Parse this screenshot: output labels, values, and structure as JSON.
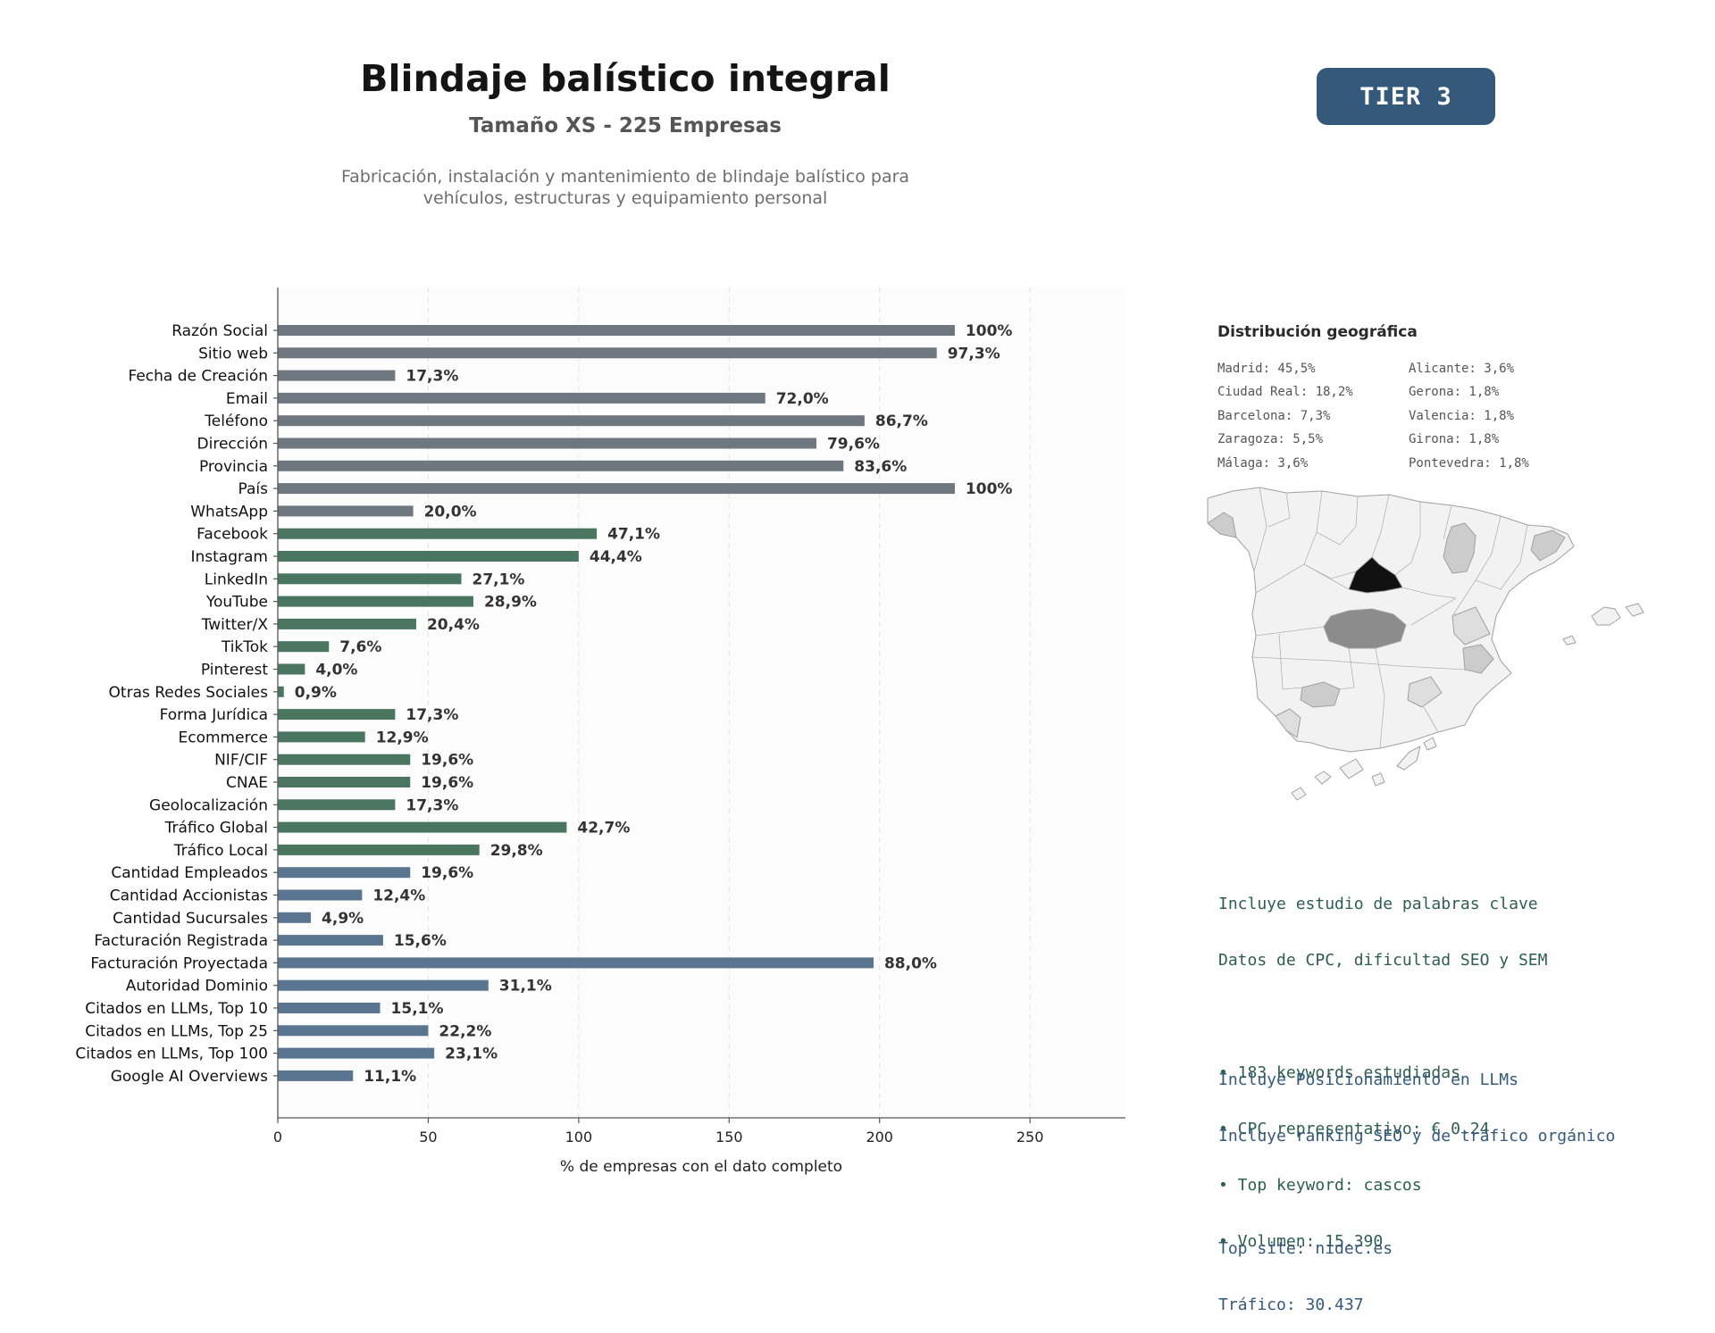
{
  "header": {
    "title": "Blindaje balístico integral",
    "subtitle": "Tamaño XS - 225 Empresas",
    "description_lines": [
      "Fabricación, instalación y mantenimiento de blindaje balístico para",
      "vehículos, estructuras y equipamiento personal"
    ],
    "tier_badge": "TIER 3",
    "tier_color": "#34597b"
  },
  "chart_data": {
    "type": "bar",
    "orientation": "horizontal",
    "xlabel": "% de empresas con el dato completo",
    "xlim": [
      0,
      282
    ],
    "x_ticks": [
      0,
      50,
      100,
      150,
      200,
      250
    ],
    "grid": "vertical dashed",
    "total_companies": 225,
    "group_colors": {
      "basic": "#6e7780",
      "digital": "#4a7561",
      "business": "#5a7590"
    },
    "bars": [
      {
        "category": "Razón Social",
        "count": 225,
        "label": "100%",
        "group": "basic"
      },
      {
        "category": "Sitio web",
        "count": 219,
        "label": "97,3%",
        "group": "basic"
      },
      {
        "category": "Fecha de Creación",
        "count": 39,
        "label": "17,3%",
        "group": "basic"
      },
      {
        "category": "Email",
        "count": 162,
        "label": "72,0%",
        "group": "basic"
      },
      {
        "category": "Teléfono",
        "count": 195,
        "label": "86,7%",
        "group": "basic"
      },
      {
        "category": "Dirección",
        "count": 179,
        "label": "79,6%",
        "group": "basic"
      },
      {
        "category": "Provincia",
        "count": 188,
        "label": "83,6%",
        "group": "basic"
      },
      {
        "category": "País",
        "count": 225,
        "label": "100%",
        "group": "basic"
      },
      {
        "category": "WhatsApp",
        "count": 45,
        "label": "20,0%",
        "group": "basic"
      },
      {
        "category": "Facebook",
        "count": 106,
        "label": "47,1%",
        "group": "digital"
      },
      {
        "category": "Instagram",
        "count": 100,
        "label": "44,4%",
        "group": "digital"
      },
      {
        "category": "LinkedIn",
        "count": 61,
        "label": "27,1%",
        "group": "digital"
      },
      {
        "category": "YouTube",
        "count": 65,
        "label": "28,9%",
        "group": "digital"
      },
      {
        "category": "Twitter/X",
        "count": 46,
        "label": "20,4%",
        "group": "digital"
      },
      {
        "category": "TikTok",
        "count": 17,
        "label": "7,6%",
        "group": "digital"
      },
      {
        "category": "Pinterest",
        "count": 9,
        "label": "4,0%",
        "group": "digital"
      },
      {
        "category": "Otras Redes Sociales",
        "count": 2,
        "label": "0,9%",
        "group": "digital"
      },
      {
        "category": "Forma Jurídica",
        "count": 39,
        "label": "17,3%",
        "group": "digital"
      },
      {
        "category": "Ecommerce",
        "count": 29,
        "label": "12,9%",
        "group": "digital"
      },
      {
        "category": "NIF/CIF",
        "count": 44,
        "label": "19,6%",
        "group": "digital"
      },
      {
        "category": "CNAE",
        "count": 44,
        "label": "19,6%",
        "group": "digital"
      },
      {
        "category": "Geolocalización",
        "count": 39,
        "label": "17,3%",
        "group": "digital"
      },
      {
        "category": "Tráfico Global",
        "count": 96,
        "label": "42,7%",
        "group": "digital"
      },
      {
        "category": "Tráfico Local",
        "count": 67,
        "label": "29,8%",
        "group": "digital"
      },
      {
        "category": "Cantidad Empleados",
        "count": 44,
        "label": "19,6%",
        "group": "business"
      },
      {
        "category": "Cantidad Accionistas",
        "count": 28,
        "label": "12,4%",
        "group": "business"
      },
      {
        "category": "Cantidad Sucursales",
        "count": 11,
        "label": "4,9%",
        "group": "business"
      },
      {
        "category": "Facturación Registrada",
        "count": 35,
        "label": "15,6%",
        "group": "business"
      },
      {
        "category": "Facturación Proyectada",
        "count": 198,
        "label": "88,0%",
        "group": "business"
      },
      {
        "category": "Autoridad Dominio",
        "count": 70,
        "label": "31,1%",
        "group": "business"
      },
      {
        "category": "Citados en LLMs, Top 10",
        "count": 34,
        "label": "15,1%",
        "group": "business"
      },
      {
        "category": "Citados en LLMs, Top 25",
        "count": 50,
        "label": "22,2%",
        "group": "business"
      },
      {
        "category": "Citados en LLMs, Top 100",
        "count": 52,
        "label": "23,1%",
        "group": "business"
      },
      {
        "category": "Google AI Overviews",
        "count": 25,
        "label": "11,1%",
        "group": "business"
      }
    ]
  },
  "geo": {
    "title": "Distribución geográfica",
    "left_column": [
      "Madrid: 45,5%",
      "Ciudad Real: 18,2%",
      "Barcelona: 7,3%",
      "Zaragoza: 5,5%",
      "Málaga: 3,6%"
    ],
    "right_column": [
      "Alicante: 3,6%",
      "Gerona: 1,8%",
      "Valencia: 1,8%",
      "Girona: 1,8%",
      "Pontevedra: 1,8%"
    ],
    "map_colors": {
      "base": "#f2f2f2",
      "light": "#cccccc",
      "mid": "#8c8c8c",
      "dark": "#111111",
      "border": "#a0a0a0"
    }
  },
  "keywords": {
    "line1": "Incluye estudio de palabras clave",
    "line2": "Datos de CPC, dificultad SEO y SEM",
    "bullet1": "• 183 keywords estudiadas",
    "bullet2": "• CPC representativo: € 0.24",
    "bullet3": "• Top keyword: cascos",
    "bullet4": "• Volumen: 15.390"
  },
  "llm": {
    "line1": "Incluye Posicionamiento en LLMs",
    "line2": "Incluye ranking SEO y de tráfico orgánico",
    "line3": "Top site: nidec.es",
    "line4": "Tráfico: 30.437"
  }
}
